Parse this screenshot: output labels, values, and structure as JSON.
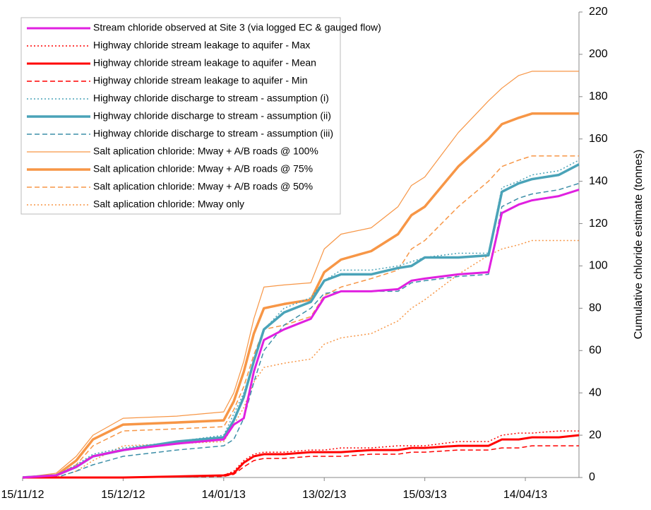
{
  "chart_data": {
    "type": "line",
    "y_label": "Cumulative chloride estimate  (tonnes)",
    "y_axis_position": "right",
    "x": [
      "15/11/12",
      "25/11/12",
      "01/12/12",
      "06/12/12",
      "15/12/12",
      "31/12/12",
      "14/01/13",
      "17/01/13",
      "20/01/13",
      "23/01/13",
      "26/01/13",
      "01/02/13",
      "09/02/13",
      "13/02/13",
      "18/02/13",
      "27/02/13",
      "07/03/13",
      "11/03/13",
      "15/03/13",
      "25/03/13",
      "03/04/13",
      "07/04/13",
      "12/04/13",
      "16/04/13",
      "24/04/13",
      "30/04/13"
    ],
    "xlim": [
      "15/11/12",
      "30/04/13"
    ],
    "xticks": [
      "15/11/12",
      "15/12/12",
      "14/01/13",
      "13/02/13",
      "15/03/13",
      "14/04/13"
    ],
    "ylim": [
      0,
      220
    ],
    "yticks": [
      0,
      20,
      40,
      60,
      80,
      100,
      120,
      140,
      160,
      180,
      200,
      220
    ],
    "series": [
      {
        "name": "Stream chloride observed at Site 3 (via logged EC & gauged flow)",
        "color": "#e020e0",
        "dash": "solid",
        "width": 3,
        "values": [
          0,
          1,
          5,
          10,
          13,
          16,
          18,
          25,
          28,
          50,
          65,
          70,
          75,
          85,
          88,
          88,
          89,
          93,
          94,
          96,
          97,
          125,
          129,
          131,
          133,
          136
        ]
      },
      {
        "name": "Highway chloride stream leakage to aquifer - Max",
        "color": "#ff0000",
        "dash": "dot",
        "width": 1.5,
        "values": [
          0,
          0,
          0,
          0,
          0,
          0.5,
          1,
          3,
          8,
          11,
          12,
          12,
          13,
          13,
          14,
          14,
          15,
          15,
          15,
          17,
          17,
          20,
          21,
          21,
          22,
          22
        ]
      },
      {
        "name": "Highway chloride stream leakage to aquifer - Mean",
        "color": "#ff0000",
        "dash": "solid",
        "width": 3,
        "values": [
          0,
          0,
          0,
          0,
          0,
          0.5,
          1,
          2,
          7,
          10,
          11,
          11,
          12,
          12,
          12,
          13,
          13,
          14,
          14,
          15,
          15,
          18,
          18,
          19,
          19,
          20
        ]
      },
      {
        "name": "Highway chloride stream leakage to aquifer - Min",
        "color": "#ff0000",
        "dash": "dash",
        "width": 1.5,
        "values": [
          0,
          0,
          0,
          0,
          0,
          0.3,
          0.5,
          1.5,
          5,
          8,
          9,
          9,
          10,
          10,
          10,
          11,
          11,
          12,
          12,
          13,
          13,
          14,
          14,
          15,
          15,
          15
        ]
      },
      {
        "name": "Highway chloride discharge to stream - assumption  (i)",
        "color": "#4aa3b8",
        "dash": "dot",
        "width": 1.5,
        "values": [
          0,
          1,
          6,
          11,
          14,
          17,
          20,
          30,
          40,
          55,
          70,
          80,
          85,
          93,
          98,
          98,
          100,
          102,
          104,
          106,
          106,
          137,
          140,
          143,
          145,
          150
        ]
      },
      {
        "name": "Highway chloride discharge to stream - assumption  (ii)",
        "color": "#4aa3b8",
        "dash": "solid",
        "width": 3.5,
        "values": [
          0,
          1,
          5,
          10,
          13,
          17,
          19,
          27,
          38,
          55,
          70,
          78,
          83,
          93,
          96,
          96,
          99,
          100,
          104,
          104,
          105,
          135,
          139,
          141,
          143,
          148
        ]
      },
      {
        "name": "Highway chloride discharge to stream - assumption   (iii)",
        "color": "#3d8fa8",
        "dash": "dash",
        "width": 1.5,
        "values": [
          0,
          0,
          3,
          6,
          10,
          13,
          15,
          18,
          28,
          45,
          60,
          72,
          80,
          87,
          88,
          88,
          88,
          92,
          93,
          95,
          96,
          128,
          132,
          134,
          136,
          139
        ]
      },
      {
        "name": "Salt aplication chloride: Mway + A/B roads @ 100%",
        "color": "#f79646",
        "dash": "solid",
        "width": 1.2,
        "values": [
          0,
          2,
          10,
          20,
          28,
          29,
          31,
          40,
          55,
          75,
          90,
          91,
          92,
          108,
          115,
          118,
          128,
          138,
          142,
          163,
          178,
          184,
          190,
          192,
          192,
          192
        ]
      },
      {
        "name": "Salt aplication chloride: Mway + A/B roads @ 75%",
        "color": "#f79646",
        "dash": "solid",
        "width": 3.5,
        "values": [
          0,
          1,
          8,
          18,
          25,
          26,
          27,
          36,
          50,
          68,
          80,
          82,
          84,
          97,
          103,
          107,
          115,
          124,
          128,
          147,
          160,
          167,
          170,
          172,
          172,
          172
        ]
      },
      {
        "name": "Salt aplication chloride: Mway + A/B roads @ 50%",
        "color": "#f79646",
        "dash": "dash",
        "width": 1.5,
        "values": [
          0,
          1,
          6,
          15,
          22,
          23,
          24,
          32,
          43,
          58,
          70,
          72,
          76,
          86,
          90,
          94,
          98,
          108,
          112,
          128,
          140,
          147,
          150,
          152,
          152,
          152
        ]
      },
      {
        "name": "Salt aplication chloride: Mway only",
        "color": "#f79646",
        "dash": "dot",
        "width": 1.5,
        "values": [
          0,
          0,
          3,
          8,
          15,
          16,
          17,
          25,
          33,
          45,
          52,
          54,
          56,
          63,
          66,
          68,
          74,
          80,
          84,
          96,
          105,
          108,
          110,
          112,
          112,
          112
        ]
      }
    ]
  }
}
